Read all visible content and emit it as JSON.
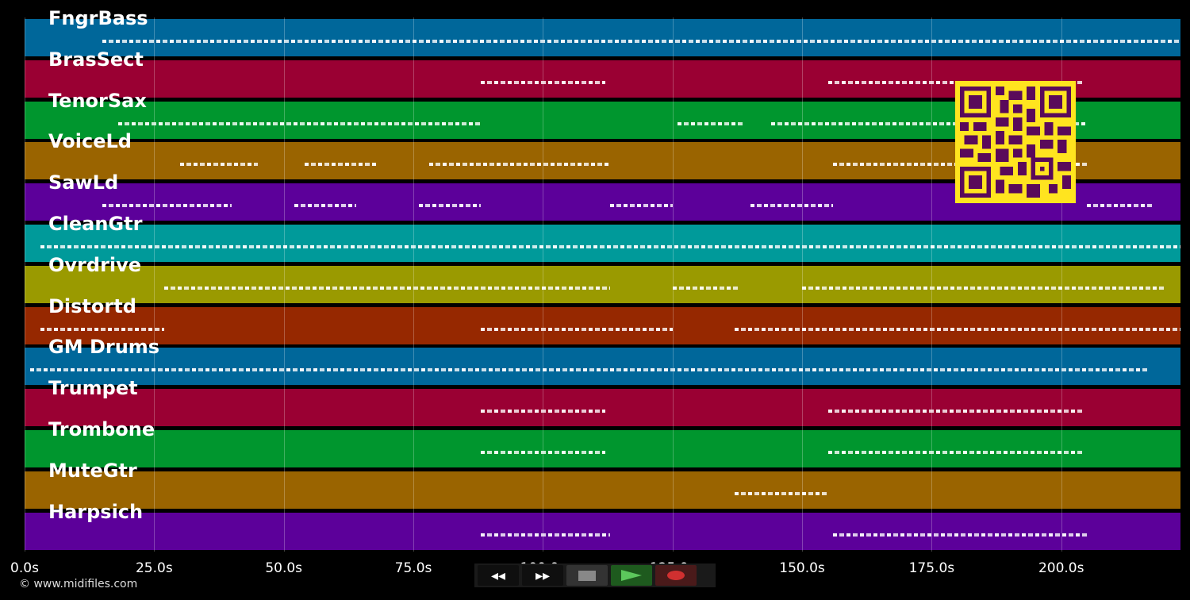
{
  "tracks": [
    {
      "name": "FngrBass",
      "color": "#00679a"
    },
    {
      "name": "BrasSect",
      "color": "#9a0033"
    },
    {
      "name": "TenorSax",
      "color": "#00962e"
    },
    {
      "name": "VoiceLd",
      "color": "#9a6400"
    },
    {
      "name": "SawLd",
      "color": "#5c009a"
    },
    {
      "name": "CleanGtr",
      "color": "#009a9a"
    },
    {
      "name": "Ovrdrive",
      "color": "#9a9a00"
    },
    {
      "name": "Distortd",
      "color": "#962800"
    },
    {
      "name": "GM Drums",
      "color": "#00679a"
    },
    {
      "name": "Trumpet",
      "color": "#9a0033"
    },
    {
      "name": "Trombone",
      "color": "#00962e"
    },
    {
      "name": "MuteGtr",
      "color": "#9a6400"
    },
    {
      "name": "Harpsich",
      "color": "#5c009a"
    }
  ],
  "axis": {
    "ticks": [
      "0.0s",
      "25.0s",
      "50.0s",
      "75.0s",
      "100.0s",
      "125.0s",
      "150.0s",
      "175.0s",
      "200.0s"
    ],
    "tick_values": [
      0,
      25,
      50,
      75,
      100,
      125,
      150,
      175,
      200
    ],
    "max_seconds": 223
  },
  "note_regions": [
    {
      "track": 0,
      "ranges": [
        [
          15,
          223
        ]
      ]
    },
    {
      "track": 1,
      "ranges": [
        [
          88,
          112
        ],
        [
          155,
          204
        ]
      ]
    },
    {
      "track": 2,
      "ranges": [
        [
          18,
          88
        ],
        [
          126,
          139
        ],
        [
          144,
          205
        ]
      ]
    },
    {
      "track": 3,
      "ranges": [
        [
          30,
          45
        ],
        [
          54,
          68
        ],
        [
          78,
          113
        ],
        [
          156,
          205
        ]
      ]
    },
    {
      "track": 4,
      "ranges": [
        [
          15,
          40
        ],
        [
          52,
          64
        ],
        [
          76,
          88
        ],
        [
          113,
          125
        ],
        [
          140,
          156
        ],
        [
          205,
          218
        ]
      ]
    },
    {
      "track": 5,
      "ranges": [
        [
          3,
          223
        ]
      ]
    },
    {
      "track": 6,
      "ranges": [
        [
          27,
          113
        ],
        [
          125,
          138
        ],
        [
          150,
          220
        ]
      ]
    },
    {
      "track": 7,
      "ranges": [
        [
          3,
          27
        ],
        [
          88,
          125
        ],
        [
          137,
          223
        ]
      ]
    },
    {
      "track": 8,
      "ranges": [
        [
          1,
          217
        ]
      ]
    },
    {
      "track": 9,
      "ranges": [
        [
          88,
          112
        ],
        [
          155,
          204
        ]
      ]
    },
    {
      "track": 10,
      "ranges": [
        [
          88,
          112
        ],
        [
          155,
          204
        ]
      ]
    },
    {
      "track": 11,
      "ranges": [
        [
          137,
          155
        ]
      ]
    },
    {
      "track": 12,
      "ranges": [
        [
          88,
          113
        ],
        [
          156,
          205
        ]
      ]
    }
  ],
  "transport": {
    "rewind_label": "◂◂",
    "forward_label": "▸▸",
    "stop_color": "#888888",
    "play_color": "#5cc85c",
    "record_color": "#d03030"
  },
  "footer": {
    "copyright": "© www.midifiles.com"
  }
}
